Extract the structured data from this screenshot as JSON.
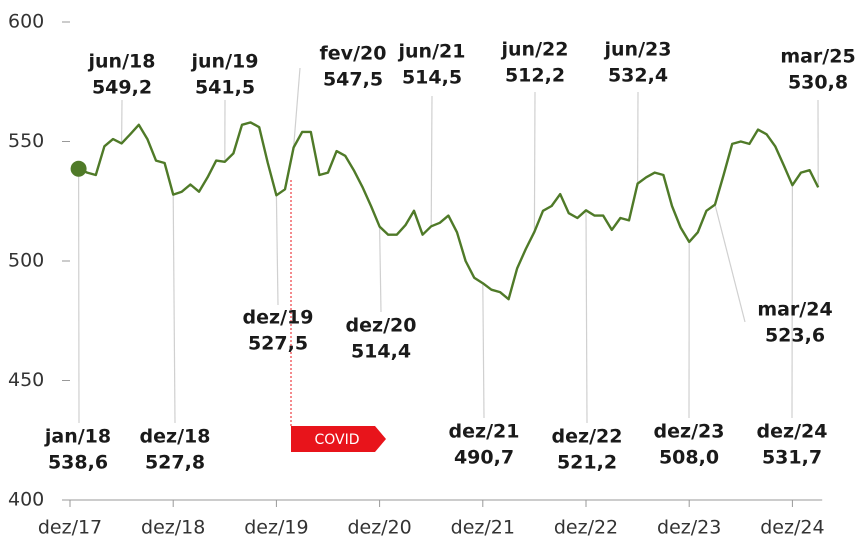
{
  "chart_data": {
    "type": "line",
    "categories": [
      "dez/17",
      null,
      null,
      null,
      null,
      null,
      null,
      null,
      null,
      null,
      null,
      null,
      "dez/18",
      null,
      null,
      null,
      null,
      null,
      null,
      null,
      null,
      null,
      null,
      null,
      "dez/19",
      null,
      null,
      null,
      null,
      null,
      null,
      null,
      null,
      null,
      null,
      null,
      "dez/20",
      null,
      null,
      null,
      null,
      null,
      null,
      null,
      null,
      null,
      null,
      null,
      "dez/21",
      null,
      null,
      null,
      null,
      null,
      null,
      null,
      null,
      null,
      null,
      null,
      "dez/22",
      null,
      null,
      null,
      null,
      null,
      null,
      null,
      null,
      null,
      null,
      null,
      "dez/23",
      null,
      null,
      null,
      null,
      null,
      null,
      null,
      null,
      null,
      null,
      null,
      "dez/24",
      null,
      null,
      null
    ],
    "series": [
      {
        "color": "#4f7a28",
        "values": [
          null,
          538.6,
          537,
          536,
          548,
          551,
          549.2,
          553,
          557,
          551,
          542,
          541,
          527.8,
          529,
          532,
          529,
          535,
          542,
          541.5,
          545,
          557,
          558,
          556,
          541,
          527.5,
          530,
          547.5,
          554,
          554,
          536,
          537,
          546,
          544,
          538,
          531,
          523,
          514.4,
          511,
          511,
          515,
          521,
          511,
          514.5,
          516,
          519,
          512,
          500,
          493,
          490.7,
          488,
          487,
          484,
          497,
          505,
          512.2,
          521,
          523,
          528,
          520,
          518,
          521.2,
          519,
          519,
          513,
          518,
          517,
          532.4,
          535,
          537,
          536,
          523,
          514,
          508.0,
          512,
          521,
          523.6,
          536,
          549,
          550,
          549,
          555,
          553,
          548,
          540,
          531.7,
          537,
          538,
          530.8
        ],
        "point_labels": [
          null,
          "jan/18",
          null,
          null,
          null,
          null,
          "jun/18",
          null,
          null,
          null,
          null,
          null,
          "dez/18",
          null,
          null,
          null,
          null,
          null,
          "jun/19",
          null,
          null,
          null,
          null,
          null,
          "dez/19",
          null,
          "fev/20",
          null,
          null,
          null,
          null,
          null,
          null,
          null,
          null,
          null,
          "dez/20",
          null,
          null,
          null,
          null,
          null,
          "jun/21",
          null,
          null,
          null,
          null,
          null,
          "dez/21",
          null,
          null,
          null,
          null,
          null,
          "jun/22",
          null,
          null,
          null,
          null,
          null,
          "dez/22",
          null,
          null,
          null,
          null,
          null,
          "jun/23",
          null,
          null,
          null,
          null,
          null,
          "dez/23",
          null,
          null,
          "mar/24",
          null,
          null,
          null,
          null,
          null,
          null,
          null,
          null,
          "dez/24",
          null,
          null,
          "mar/25"
        ],
        "value_labels": [
          null,
          "538,6",
          null,
          null,
          null,
          null,
          "549,2",
          null,
          null,
          null,
          null,
          null,
          "527,8",
          null,
          null,
          null,
          null,
          null,
          "541,5",
          null,
          null,
          null,
          null,
          null,
          "527,5",
          null,
          "547,5",
          null,
          null,
          null,
          null,
          null,
          null,
          null,
          null,
          null,
          "514,4",
          null,
          null,
          null,
          null,
          null,
          "514,5",
          null,
          null,
          null,
          null,
          null,
          "490,7",
          null,
          null,
          null,
          null,
          null,
          "512,2",
          null,
          null,
          null,
          null,
          null,
          "521,2",
          null,
          null,
          null,
          null,
          null,
          "532,4",
          null,
          null,
          null,
          null,
          null,
          "508,0",
          null,
          null,
          "523,6",
          null,
          null,
          null,
          null,
          null,
          null,
          null,
          null,
          "531,7",
          null,
          null,
          "530,8"
        ]
      }
    ],
    "ylim": [
      400,
      600
    ],
    "yticks": [
      400,
      450,
      500,
      550,
      600
    ],
    "annotations": [
      {
        "text": "COVID",
        "color": "#e8141b"
      }
    ]
  }
}
